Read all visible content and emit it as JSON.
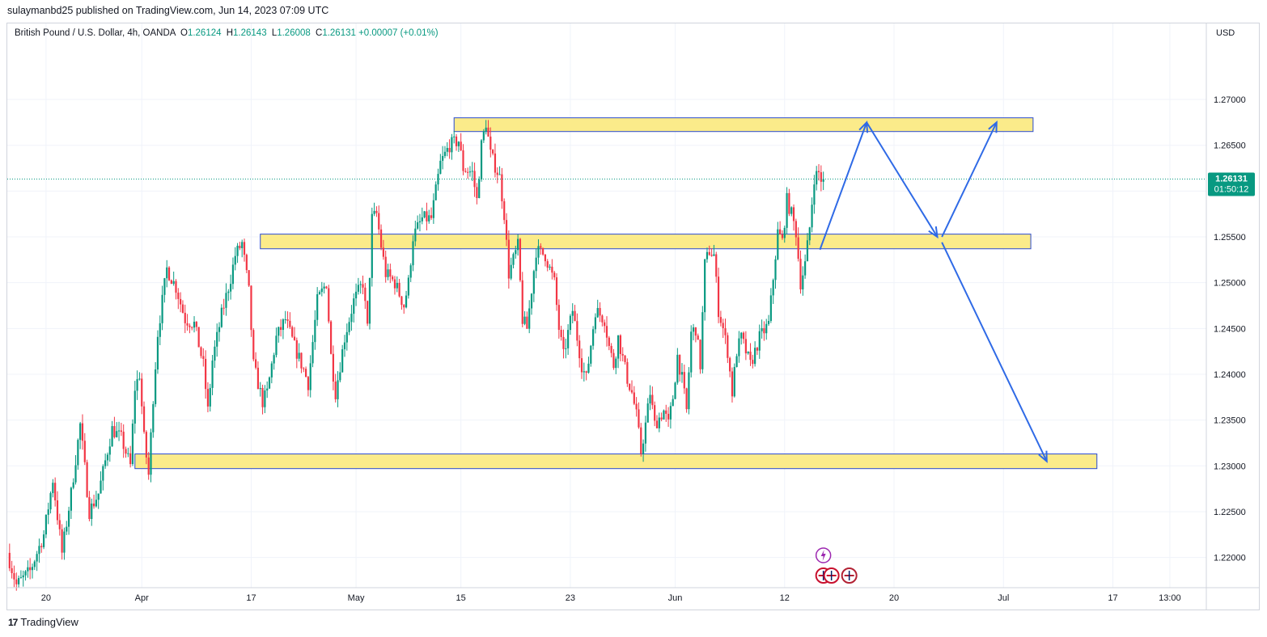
{
  "header": {
    "published_line": "sulaymanbd25 published on TradingView.com, Jun 14, 2023 07:09 UTC"
  },
  "legend": {
    "symbol_line": "British Pound / U.S. Dollar, 4h, OANDA",
    "open_label": "O",
    "open_value": "1.26124",
    "high_label": "H",
    "high_value": "1.26143",
    "low_label": "L",
    "low_value": "1.26008",
    "close_label": "C",
    "close_value": "1.26131",
    "change": "+0.00007 (+0.01%)"
  },
  "price_axis": {
    "currency": "USD",
    "current_price": "1.26131",
    "countdown": "01:50:12"
  },
  "footer": {
    "brand": "TradingView",
    "logo_icon": "tradingview-logo-icon"
  },
  "colors": {
    "up": "#089981",
    "down": "#f23645",
    "zone_fill": "#fbeb8a",
    "zone_border": "#2a4ad1",
    "arrow": "#2f6ae6",
    "price_label_bg": "#089981"
  },
  "chart_data": {
    "type": "candlestick",
    "timeframe": "4h",
    "ylim": [
      1.2167,
      1.2783
    ],
    "y_ticks": [
      1.22,
      1.225,
      1.23,
      1.235,
      1.24,
      1.245,
      1.25,
      1.255,
      1.26,
      1.265,
      1.27
    ],
    "y_tick_labels": [
      "1.22000",
      "1.22500",
      "1.23000",
      "1.23500",
      "1.24000",
      "1.24500",
      "1.25000",
      "1.25500",
      "1.26000",
      "1.26500",
      "1.27000"
    ],
    "x_ticks": [
      {
        "label": "20",
        "bar": 16
      },
      {
        "label": "Apr",
        "bar": 58
      },
      {
        "label": "17",
        "bar": 106
      },
      {
        "label": "May",
        "bar": 152
      },
      {
        "label": "15",
        "bar": 198
      },
      {
        "label": "23",
        "bar": 246
      },
      {
        "label": "Jun",
        "bar": 292
      },
      {
        "label": "12",
        "bar": 340
      },
      {
        "label": "20",
        "bar": 388
      },
      {
        "label": "Jul",
        "bar": 436
      },
      {
        "label": "17",
        "bar": 484
      },
      {
        "label": "13:00",
        "bar": 509
      }
    ],
    "x_range_bars": [
      -1,
      525
    ],
    "price_path": [
      [
        0,
        1.2205
      ],
      [
        4,
        1.217
      ],
      [
        10,
        1.2185
      ],
      [
        16,
        1.2225
      ],
      [
        20,
        1.2285
      ],
      [
        24,
        1.2205
      ],
      [
        28,
        1.227
      ],
      [
        32,
        1.2345
      ],
      [
        36,
        1.225
      ],
      [
        40,
        1.227
      ],
      [
        46,
        1.234
      ],
      [
        50,
        1.233
      ],
      [
        54,
        1.23
      ],
      [
        56,
        1.2385
      ],
      [
        58,
        1.24
      ],
      [
        60,
        1.233
      ],
      [
        62,
        1.229
      ],
      [
        64,
        1.2375
      ],
      [
        66,
        1.2445
      ],
      [
        70,
        1.2515
      ],
      [
        74,
        1.2495
      ],
      [
        78,
        1.246
      ],
      [
        82,
        1.2455
      ],
      [
        86,
        1.241
      ],
      [
        88,
        1.236
      ],
      [
        90,
        1.2415
      ],
      [
        94,
        1.2465
      ],
      [
        98,
        1.2505
      ],
      [
        100,
        1.253
      ],
      [
        103,
        1.2543
      ],
      [
        106,
        1.249
      ],
      [
        108,
        1.241
      ],
      [
        112,
        1.237
      ],
      [
        114,
        1.238
      ],
      [
        118,
        1.244
      ],
      [
        122,
        1.246
      ],
      [
        126,
        1.243
      ],
      [
        130,
        1.2405
      ],
      [
        132,
        1.239
      ],
      [
        136,
        1.248
      ],
      [
        140,
        1.25
      ],
      [
        142,
        1.242
      ],
      [
        144,
        1.238
      ],
      [
        148,
        1.244
      ],
      [
        152,
        1.248
      ],
      [
        156,
        1.25
      ],
      [
        158,
        1.245
      ],
      [
        160,
        1.257
      ],
      [
        162,
        1.2575
      ],
      [
        164,
        1.254
      ],
      [
        166,
        1.251
      ],
      [
        170,
        1.25
      ],
      [
        174,
        1.2475
      ],
      [
        176,
        1.25
      ],
      [
        178,
        1.255
      ],
      [
        182,
        1.257
      ],
      [
        186,
        1.257
      ],
      [
        190,
        1.263
      ],
      [
        194,
        1.265
      ],
      [
        198,
        1.2655
      ],
      [
        200,
        1.2625
      ],
      [
        204,
        1.262
      ],
      [
        206,
        1.259
      ],
      [
        208,
        1.265
      ],
      [
        210,
        1.2675
      ],
      [
        212,
        1.264
      ],
      [
        216,
        1.2615
      ],
      [
        218,
        1.2575
      ],
      [
        220,
        1.251
      ],
      [
        224,
        1.254
      ],
      [
        226,
        1.246
      ],
      [
        228,
        1.245
      ],
      [
        232,
        1.2535
      ],
      [
        236,
        1.253
      ],
      [
        240,
        1.25
      ],
      [
        242,
        1.245
      ],
      [
        244,
        1.242
      ],
      [
        248,
        1.247
      ],
      [
        252,
        1.241
      ],
      [
        254,
        1.2395
      ],
      [
        258,
        1.247
      ],
      [
        262,
        1.246
      ],
      [
        264,
        1.243
      ],
      [
        266,
        1.241
      ],
      [
        268,
        1.244
      ],
      [
        272,
        1.2395
      ],
      [
        274,
        1.238
      ],
      [
        276,
        1.2355
      ],
      [
        278,
        1.2315
      ],
      [
        280,
        1.2345
      ],
      [
        282,
        1.238
      ],
      [
        284,
        1.2345
      ],
      [
        288,
        1.236
      ],
      [
        290,
        1.2345
      ],
      [
        292,
        1.2375
      ],
      [
        294,
        1.242
      ],
      [
        296,
        1.2395
      ],
      [
        298,
        1.236
      ],
      [
        300,
        1.2445
      ],
      [
        302,
        1.245
      ],
      [
        304,
        1.241
      ],
      [
        306,
        1.252
      ],
      [
        308,
        1.2535
      ],
      [
        310,
        1.253
      ],
      [
        312,
        1.247
      ],
      [
        314,
        1.245
      ],
      [
        316,
        1.2425
      ],
      [
        318,
        1.238
      ],
      [
        320,
        1.2425
      ],
      [
        322,
        1.244
      ],
      [
        326,
        1.241
      ],
      [
        330,
        1.244
      ],
      [
        334,
        1.2455
      ],
      [
        336,
        1.2505
      ],
      [
        338,
        1.2555
      ],
      [
        340,
        1.2545
      ],
      [
        342,
        1.259
      ],
      [
        344,
        1.2575
      ],
      [
        346,
        1.2555
      ],
      [
        348,
        1.25
      ],
      [
        350,
        1.252
      ],
      [
        352,
        1.256
      ],
      [
        354,
        1.2615
      ],
      [
        356,
        1.262
      ],
      [
        357,
        1.2613
      ]
    ],
    "zones": [
      {
        "name": "resistance",
        "y0": 1.2665,
        "y1": 1.268,
        "x0": 195,
        "x1": 449
      },
      {
        "name": "middle",
        "y0": 1.2537,
        "y1": 1.2553,
        "x0": 110,
        "x1": 448
      },
      {
        "name": "support",
        "y0": 1.2297,
        "y1": 1.2313,
        "x0": 55,
        "x1": 477
      }
    ],
    "arrows": [
      {
        "from": [
          355.5,
          1.2536
        ],
        "to": [
          376,
          1.2675
        ]
      },
      {
        "from": [
          376,
          1.2675
        ],
        "to": [
          407,
          1.255
        ]
      },
      {
        "from": [
          409,
          1.255
        ],
        "to": [
          433,
          1.2675
        ]
      },
      {
        "from": [
          409,
          1.2544
        ],
        "to": [
          455,
          1.2305
        ]
      }
    ],
    "last_price": 1.26131,
    "event_icons": [
      {
        "bar": 357,
        "price_row": "top",
        "icon": "lightning-icon"
      },
      {
        "bar": 357,
        "price_row": "bottom",
        "icon": "uk-flag-icon"
      },
      {
        "bar": 362,
        "price_row": "bottom",
        "icon": "us-flag-icon"
      }
    ]
  }
}
